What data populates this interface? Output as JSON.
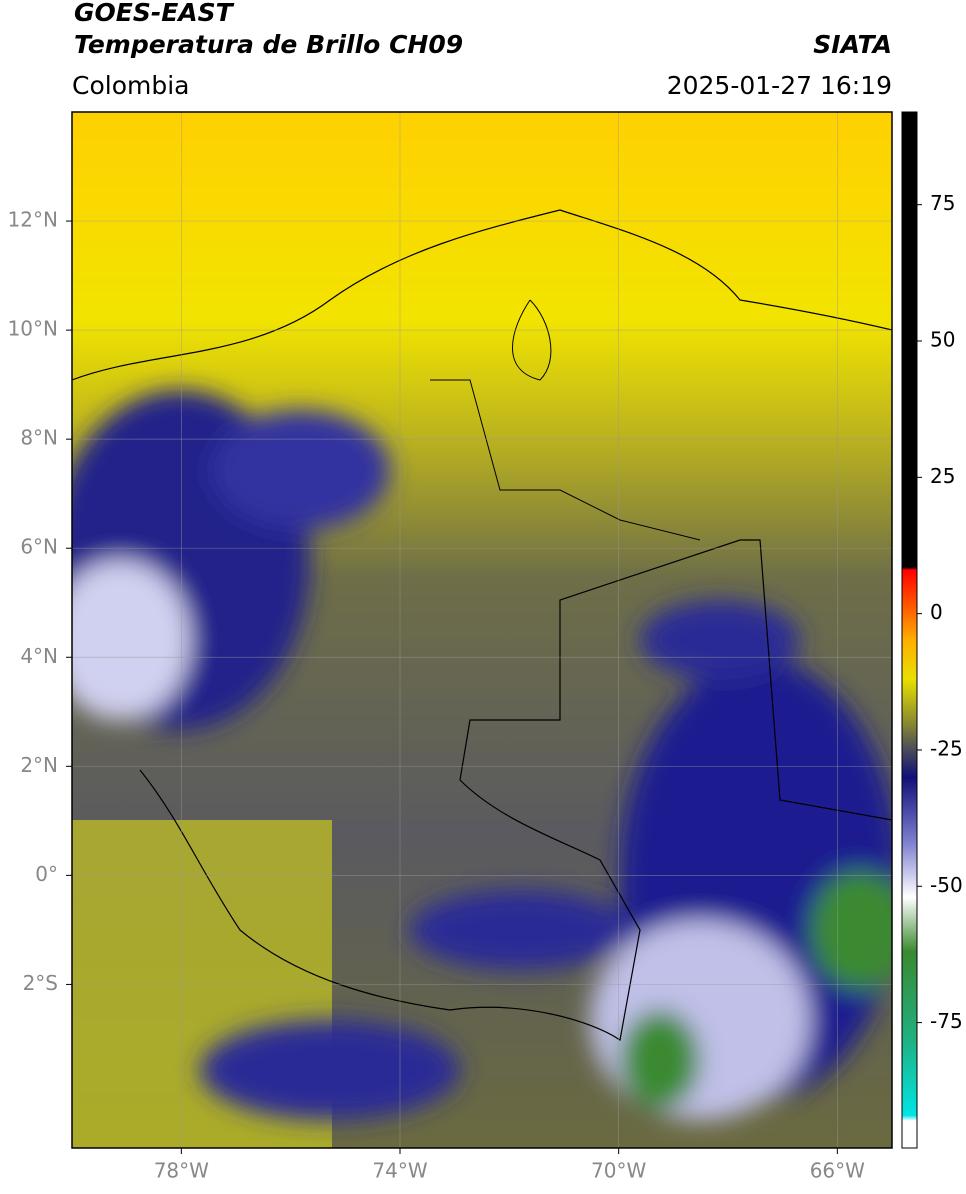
{
  "chart_data": {
    "type": "map",
    "title": "GOES-EAST",
    "subtitle": "Temperatura de Brillo CH09",
    "region": "Colombia",
    "source": "SIATA",
    "timestamp": "2025-01-27 16:19",
    "xlim": [
      -80,
      -65
    ],
    "ylim": [
      -5,
      14
    ],
    "xticks": [
      {
        "value": -78,
        "label": "78°W"
      },
      {
        "value": -74,
        "label": "74°W"
      },
      {
        "value": -70,
        "label": "70°W"
      },
      {
        "value": -66,
        "label": "66°W"
      }
    ],
    "yticks": [
      {
        "value": 12,
        "label": "12°N"
      },
      {
        "value": 10,
        "label": "10°N"
      },
      {
        "value": 8,
        "label": "8°N"
      },
      {
        "value": 6,
        "label": "6°N"
      },
      {
        "value": 4,
        "label": "4°N"
      },
      {
        "value": 2,
        "label": "2°N"
      },
      {
        "value": 0,
        "label": "0°"
      },
      {
        "value": -2,
        "label": "2°S"
      }
    ],
    "grid": true,
    "colorbar": {
      "clim": [
        -98,
        92
      ],
      "ticks": [
        75,
        50,
        25,
        0,
        -25,
        -50,
        -75
      ],
      "colormap": [
        {
          "value": -98,
          "color": "#ffffff"
        },
        {
          "value": -93,
          "color": "#ffffff"
        },
        {
          "value": -92,
          "color": "#00e5e5"
        },
        {
          "value": -78,
          "color": "#20b080"
        },
        {
          "value": -62,
          "color": "#3a8a30"
        },
        {
          "value": -52,
          "color": "#ffffff"
        },
        {
          "value": -42,
          "color": "#8080d0"
        },
        {
          "value": -30,
          "color": "#10107a"
        },
        {
          "value": -25,
          "color": "#4a4a5a"
        },
        {
          "value": -20,
          "color": "#8a8a30"
        },
        {
          "value": -12,
          "color": "#e8e000"
        },
        {
          "value": -5,
          "color": "#ffb000"
        },
        {
          "value": 2,
          "color": "#ff5000"
        },
        {
          "value": 8,
          "color": "#ff0000"
        },
        {
          "value": 8.5,
          "color": "#000000"
        },
        {
          "value": 92,
          "color": "#000000"
        }
      ]
    }
  }
}
